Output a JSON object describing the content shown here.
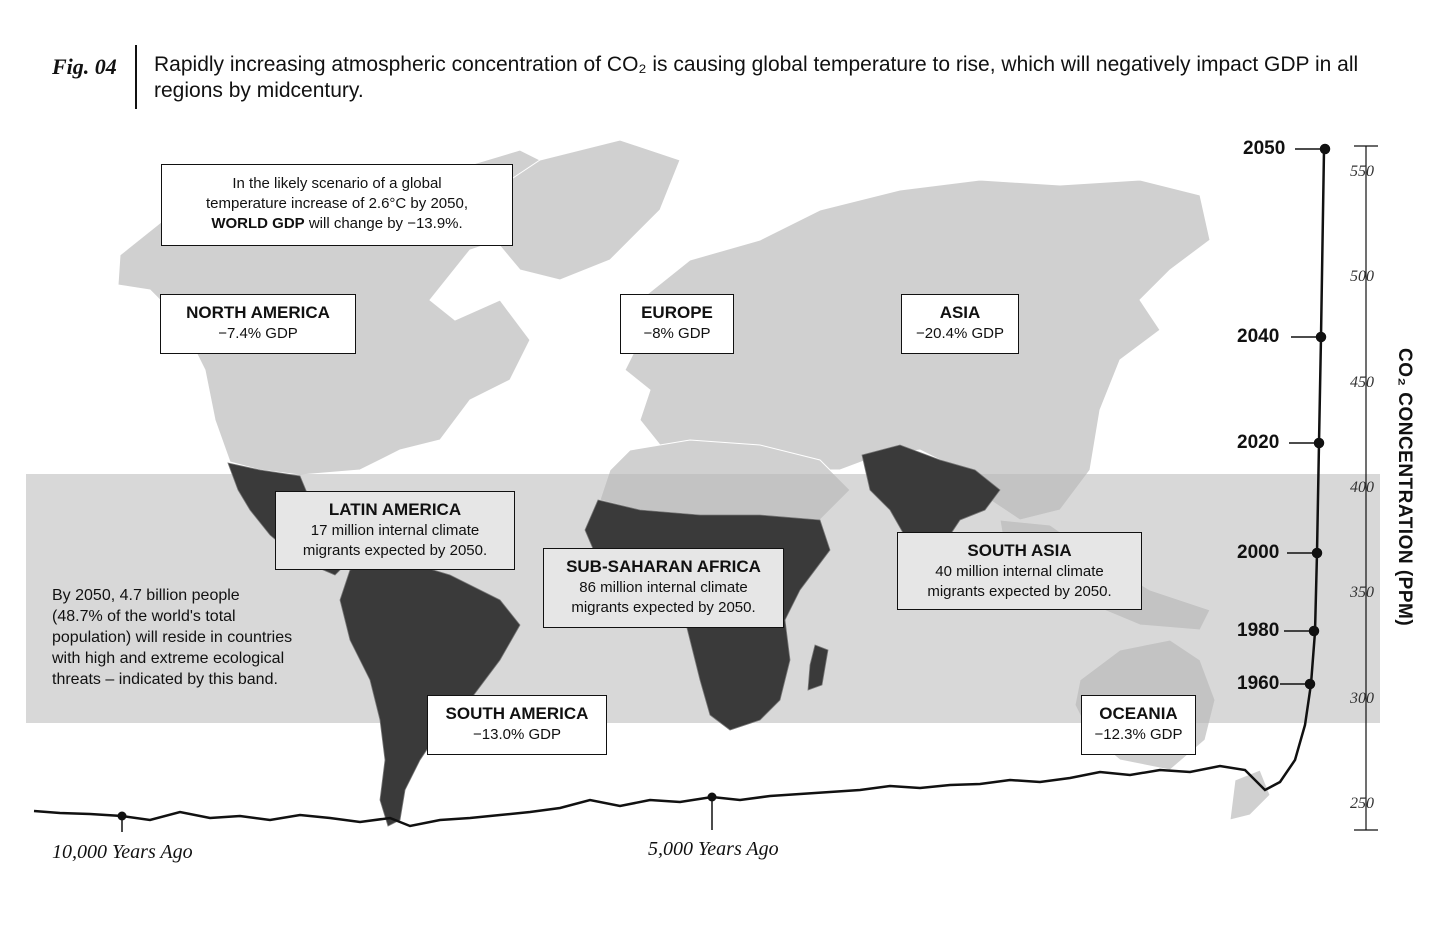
{
  "header": {
    "fig_label": "Fig. 04",
    "caption": "Rapidly increasing atmospheric concentration of CO₂ is causing global temperature to rise, which will negatively impact GDP in all regions by midcentury."
  },
  "world_box": {
    "line1": "In the likely scenario of a global",
    "line2": "temperature increase of 2.6°C by 2050,",
    "line3_bold": "WORLD GDP",
    "line3_rest": " will change by −13.9%."
  },
  "regions": {
    "north_america": {
      "title": "NORTH AMERICA",
      "sub": "−7.4% GDP"
    },
    "europe": {
      "title": "EUROPE",
      "sub": "−8% GDP"
    },
    "asia": {
      "title": "ASIA",
      "sub": "−20.4% GDP"
    },
    "latin_america": {
      "title": "LATIN AMERICA",
      "sub1": "17 million internal climate",
      "sub2": "migrants expected by 2050."
    },
    "sub_saharan_africa": {
      "title": "SUB-SAHARAN AFRICA",
      "sub1": "86 million internal climate",
      "sub2": "migrants expected by 2050."
    },
    "south_asia": {
      "title": "SOUTH ASIA",
      "sub1": "40 million internal climate",
      "sub2": "migrants expected by 2050."
    },
    "south_america": {
      "title": "SOUTH AMERICA",
      "sub": "−13.0% GDP"
    },
    "oceania": {
      "title": "OCEANIA",
      "sub": "−12.3% GDP"
    }
  },
  "band_note": {
    "line1": "By 2050, 4.7 billion people",
    "line2": "(48.7% of the world's total",
    "line3": "population) will reside in countries",
    "line4": "with high and extreme ecological",
    "line5": "threats – indicated by this band."
  },
  "timeline": {
    "label_10000": "10,000 Years Ago",
    "label_5000": "5,000 Years Ago",
    "years": [
      "2050",
      "2040",
      "2020",
      "2000",
      "1980",
      "1960"
    ]
  },
  "ppm_axis": {
    "title": "CO₂ CONCENTRATION (PPM)",
    "ticks": [
      "550",
      "500",
      "450",
      "400",
      "350",
      "300",
      "250"
    ]
  },
  "colors": {
    "land": "#d0d0d0",
    "threat_land": "#3a3a3a",
    "band": "#b8b8b8",
    "line": "#111111"
  }
}
